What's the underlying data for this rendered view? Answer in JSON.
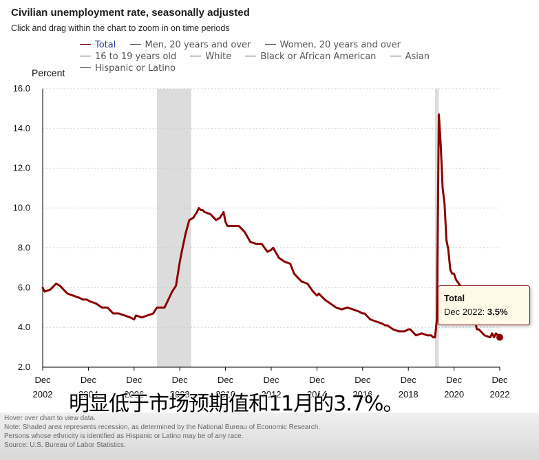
{
  "title": "Civilian unemployment rate, seasonally adjusted",
  "subtitle": "Click and drag within the chart to zoom in on time periods",
  "legend": [
    {
      "label": "Total",
      "active": true
    },
    {
      "label": "Men, 20 years and over",
      "active": false
    },
    {
      "label": "Women, 20 years and over",
      "active": false
    },
    {
      "label": "16 to 19 years old",
      "active": false
    },
    {
      "label": "White",
      "active": false
    },
    {
      "label": "Black or African American",
      "active": false
    },
    {
      "label": "Asian",
      "active": false
    },
    {
      "label": "Hispanic or Latino",
      "active": false
    }
  ],
  "colors": {
    "series": "#8b0000",
    "recession": "#dcdcdc",
    "grid": "#c8c8c8"
  },
  "tooltip": {
    "title": "Total",
    "label": "Dec 2022: ",
    "value": "3.5%"
  },
  "video_subtitle": "明显低于市场预期值和11月的3.7%。",
  "footer": {
    "hover": "Hover over chart to view data.",
    "note": "Note: Shaded area represents recession, as determined by the National Bureau of Economic Research.",
    "ethnicity": "Persons whose ethnicity is identified as Hispanic or Latino may be of any race.",
    "source": "Source: U.S. Bureau of Labor Statistics."
  },
  "chart_data": {
    "type": "line",
    "title": "Civilian unemployment rate, seasonally adjusted",
    "ylabel": "Percent",
    "ylim": [
      2.0,
      16.0
    ],
    "yticks": [
      "2.0",
      "4.0",
      "6.0",
      "8.0",
      "10.0",
      "12.0",
      "14.0",
      "16.0"
    ],
    "xlim": [
      2002.917,
      2022.917
    ],
    "xticks": [
      {
        "x": 2002.917,
        "line1": "Dec",
        "line2": "2002"
      },
      {
        "x": 2004.917,
        "line1": "Dec",
        "line2": "2004"
      },
      {
        "x": 2006.917,
        "line1": "Dec",
        "line2": "2006"
      },
      {
        "x": 2008.917,
        "line1": "Dec",
        "line2": "2008"
      },
      {
        "x": 2010.917,
        "line1": "Dec",
        "line2": "2010"
      },
      {
        "x": 2012.917,
        "line1": "Dec",
        "line2": "2012"
      },
      {
        "x": 2014.917,
        "line1": "Dec",
        "line2": "2014"
      },
      {
        "x": 2016.917,
        "line1": "Dec",
        "line2": "2016"
      },
      {
        "x": 2018.917,
        "line1": "Dec",
        "line2": "2018"
      },
      {
        "x": 2020.917,
        "line1": "Dec",
        "line2": "2020"
      },
      {
        "x": 2022.917,
        "line1": "Dec",
        "line2": "2022"
      }
    ],
    "grid": true,
    "recessions": [
      [
        2007.917,
        2009.417
      ],
      [
        2020.083,
        2020.25
      ]
    ],
    "series": [
      {
        "name": "Total",
        "x": [
          2002.917,
          2003.0,
          2003.25,
          2003.333,
          2003.417,
          2003.5,
          2003.667,
          2003.833,
          2004.0,
          2004.25,
          2004.5,
          2004.667,
          2004.833,
          2005.0,
          2005.25,
          2005.5,
          2005.75,
          2006.0,
          2006.25,
          2006.5,
          2006.75,
          2006.917,
          2007.0,
          2007.25,
          2007.5,
          2007.75,
          2007.917,
          2008.0,
          2008.25,
          2008.417,
          2008.583,
          2008.75,
          2008.917,
          2009.0,
          2009.167,
          2009.333,
          2009.5,
          2009.667,
          2009.75,
          2009.833,
          2009.917,
          2010.0,
          2010.25,
          2010.5,
          2010.667,
          2010.833,
          2010.917,
          2011.0,
          2011.25,
          2011.5,
          2011.75,
          2012.0,
          2012.25,
          2012.5,
          2012.75,
          2012.917,
          2013.0,
          2013.25,
          2013.5,
          2013.75,
          2013.917,
          2014.0,
          2014.25,
          2014.5,
          2014.75,
          2014.917,
          2015.0,
          2015.25,
          2015.5,
          2015.75,
          2016.0,
          2016.25,
          2016.5,
          2016.75,
          2016.917,
          2017.0,
          2017.25,
          2017.5,
          2017.75,
          2017.917,
          2018.0,
          2018.25,
          2018.5,
          2018.75,
          2018.917,
          2019.0,
          2019.25,
          2019.5,
          2019.75,
          2019.917,
          2020.0,
          2020.083,
          2020.167,
          2020.25,
          2020.333,
          2020.417,
          2020.5,
          2020.583,
          2020.667,
          2020.75,
          2020.833,
          2020.917,
          2021.0,
          2021.25,
          2021.5,
          2021.75,
          2021.917,
          2022.0,
          2022.25,
          2022.5,
          2022.583,
          2022.667,
          2022.75,
          2022.833,
          2022.917
        ],
        "values": [
          6.0,
          5.8,
          5.9,
          6.0,
          6.1,
          6.2,
          6.1,
          5.9,
          5.7,
          5.6,
          5.5,
          5.4,
          5.4,
          5.3,
          5.2,
          5.0,
          5.0,
          4.7,
          4.7,
          4.6,
          4.5,
          4.4,
          4.6,
          4.5,
          4.6,
          4.7,
          5.0,
          5.0,
          5.0,
          5.4,
          5.8,
          6.1,
          7.3,
          7.8,
          8.7,
          9.4,
          9.5,
          9.8,
          10.0,
          9.9,
          9.9,
          9.8,
          9.7,
          9.4,
          9.5,
          9.8,
          9.3,
          9.1,
          9.1,
          9.1,
          8.8,
          8.3,
          8.2,
          8.2,
          7.8,
          7.9,
          8.0,
          7.5,
          7.3,
          7.2,
          6.7,
          6.6,
          6.3,
          6.2,
          5.8,
          5.6,
          5.7,
          5.4,
          5.2,
          5.0,
          4.9,
          5.0,
          4.9,
          4.8,
          4.7,
          4.7,
          4.4,
          4.3,
          4.2,
          4.1,
          4.1,
          3.9,
          3.8,
          3.8,
          3.9,
          3.9,
          3.6,
          3.7,
          3.6,
          3.6,
          3.5,
          3.5,
          4.4,
          14.7,
          13.2,
          11.0,
          10.2,
          8.4,
          7.9,
          6.9,
          6.7,
          6.7,
          6.4,
          6.0,
          5.9,
          4.7,
          3.9,
          3.9,
          3.6,
          3.5,
          3.7,
          3.5,
          3.7,
          3.6,
          3.5
        ]
      }
    ],
    "highlight": {
      "x": 2022.917,
      "y": 3.5
    }
  }
}
